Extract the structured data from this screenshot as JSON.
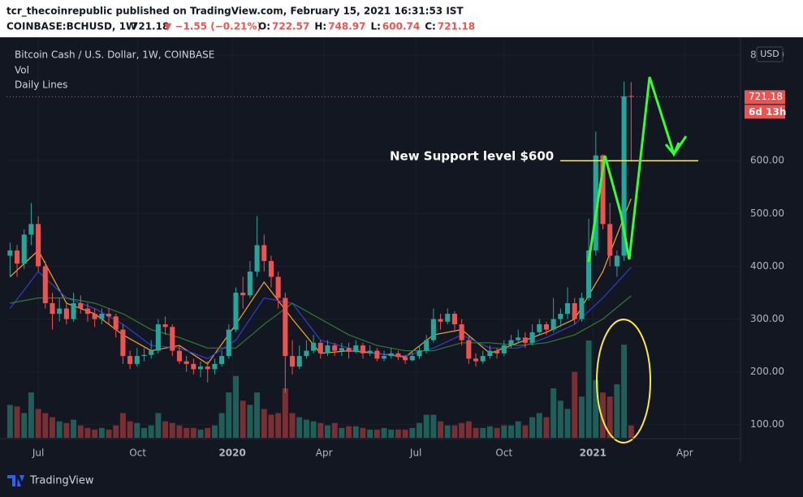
{
  "header": {
    "publisher": "tcr_thecoinrepublic published on TradingView.com, February 15, 2021 16:31:53 IST",
    "symbol": "COINBASE:BCHUSD, 1W",
    "price": "721.18",
    "change": "▼ −1.55 (−0.21%)",
    "ohlc": [
      {
        "label": "O:",
        "value": "722.57"
      },
      {
        "label": "H:",
        "value": "748.97"
      },
      {
        "label": "L:",
        "value": "600.74"
      },
      {
        "label": "C:",
        "value": "721.18"
      }
    ]
  },
  "chart_data": {
    "type": "candlestick",
    "legend": [
      "Bitcoin Cash / U.S. Dollar, 1W, COINBASE",
      "Vol",
      "Daily Lines"
    ],
    "currency": "USD",
    "last_price": 721.18,
    "countdown": "6d 13h",
    "up_color": "#26a69a",
    "down_color": "#ef5350",
    "up_volume_color": "#1f5f5a",
    "down_volume_color": "#7a2f33",
    "annotation": {
      "text": "New Support level $600",
      "level": 600,
      "color": "#ffeb3b"
    },
    "xlim": [
      -0.5,
      103.5
    ],
    "xticks": [
      {
        "value": 4,
        "label": "Jul"
      },
      {
        "value": 18.1,
        "label": "Oct"
      },
      {
        "value": 31.5,
        "label": "2020"
      },
      {
        "value": 44.5,
        "label": "Apr"
      },
      {
        "value": 57.5,
        "label": "Jul"
      },
      {
        "value": 70,
        "label": "Oct"
      },
      {
        "value": 82.6,
        "label": "2021"
      },
      {
        "value": 95.6,
        "label": "Apr"
      }
    ],
    "ylim": [
      75,
      820
    ],
    "yticks": [
      {
        "value": 100,
        "label": "100.00"
      },
      {
        "value": 200,
        "label": "200.00"
      },
      {
        "value": 300,
        "label": "300.00"
      },
      {
        "value": 400,
        "label": "400.00"
      },
      {
        "value": 500,
        "label": "500.00"
      },
      {
        "value": 600,
        "label": "600.00"
      },
      {
        "value": 800,
        "label": "800.00"
      }
    ],
    "candles": [
      {
        "x": 0,
        "open": 420,
        "high": 445,
        "low": 380,
        "close": 430,
        "volume": 40
      },
      {
        "x": 1,
        "open": 430,
        "high": 440,
        "low": 380,
        "close": 405,
        "volume": 38
      },
      {
        "x": 2,
        "open": 405,
        "high": 470,
        "low": 395,
        "close": 460,
        "volume": 30
      },
      {
        "x": 3,
        "open": 460,
        "high": 520,
        "low": 440,
        "close": 480,
        "volume": 55
      },
      {
        "x": 4,
        "open": 480,
        "high": 495,
        "low": 390,
        "close": 400,
        "volume": 35
      },
      {
        "x": 5,
        "open": 400,
        "high": 410,
        "low": 320,
        "close": 330,
        "volume": 30
      },
      {
        "x": 6,
        "open": 330,
        "high": 350,
        "low": 280,
        "close": 310,
        "volume": 25
      },
      {
        "x": 7,
        "open": 310,
        "high": 340,
        "low": 295,
        "close": 320,
        "volume": 20
      },
      {
        "x": 8,
        "open": 320,
        "high": 330,
        "low": 290,
        "close": 300,
        "volume": 18
      },
      {
        "x": 9,
        "open": 300,
        "high": 350,
        "low": 295,
        "close": 330,
        "volume": 22
      },
      {
        "x": 10,
        "open": 330,
        "high": 345,
        "low": 310,
        "close": 320,
        "volume": 15
      },
      {
        "x": 11,
        "open": 320,
        "high": 330,
        "low": 295,
        "close": 310,
        "volume": 12
      },
      {
        "x": 12,
        "open": 310,
        "high": 320,
        "low": 285,
        "close": 300,
        "volume": 10
      },
      {
        "x": 13,
        "open": 300,
        "high": 320,
        "low": 290,
        "close": 310,
        "volume": 12
      },
      {
        "x": 14,
        "open": 310,
        "high": 320,
        "low": 290,
        "close": 305,
        "volume": 10
      },
      {
        "x": 15,
        "open": 305,
        "high": 310,
        "low": 265,
        "close": 280,
        "volume": 15
      },
      {
        "x": 16,
        "open": 280,
        "high": 290,
        "low": 215,
        "close": 230,
        "volume": 30
      },
      {
        "x": 17,
        "open": 230,
        "high": 240,
        "low": 205,
        "close": 215,
        "volume": 20
      },
      {
        "x": 18,
        "open": 215,
        "high": 245,
        "low": 210,
        "close": 230,
        "volume": 18
      },
      {
        "x": 19,
        "open": 230,
        "high": 245,
        "low": 220,
        "close": 232,
        "volume": 12
      },
      {
        "x": 20,
        "open": 232,
        "high": 260,
        "low": 225,
        "close": 240,
        "volume": 15
      },
      {
        "x": 21,
        "open": 240,
        "high": 300,
        "low": 235,
        "close": 290,
        "volume": 30
      },
      {
        "x": 22,
        "open": 290,
        "high": 305,
        "low": 270,
        "close": 285,
        "volume": 20
      },
      {
        "x": 23,
        "open": 285,
        "high": 290,
        "low": 230,
        "close": 240,
        "volume": 18
      },
      {
        "x": 24,
        "open": 240,
        "high": 250,
        "low": 215,
        "close": 220,
        "volume": 15
      },
      {
        "x": 25,
        "open": 220,
        "high": 230,
        "low": 200,
        "close": 215,
        "volume": 12
      },
      {
        "x": 26,
        "open": 215,
        "high": 225,
        "low": 195,
        "close": 205,
        "volume": 12
      },
      {
        "x": 27,
        "open": 205,
        "high": 220,
        "low": 190,
        "close": 210,
        "volume": 10
      },
      {
        "x": 28,
        "open": 210,
        "high": 220,
        "low": 180,
        "close": 205,
        "volume": 12
      },
      {
        "x": 29,
        "open": 205,
        "high": 225,
        "low": 195,
        "close": 215,
        "volume": 15
      },
      {
        "x": 30,
        "open": 215,
        "high": 240,
        "low": 210,
        "close": 230,
        "volume": 30
      },
      {
        "x": 31,
        "open": 230,
        "high": 290,
        "low": 225,
        "close": 280,
        "volume": 55
      },
      {
        "x": 32,
        "open": 280,
        "high": 360,
        "low": 275,
        "close": 350,
        "volume": 75
      },
      {
        "x": 33,
        "open": 350,
        "high": 380,
        "low": 320,
        "close": 345,
        "volume": 45
      },
      {
        "x": 34,
        "open": 345,
        "high": 410,
        "low": 340,
        "close": 390,
        "volume": 40
      },
      {
        "x": 35,
        "open": 390,
        "high": 495,
        "low": 380,
        "close": 440,
        "volume": 55
      },
      {
        "x": 36,
        "open": 440,
        "high": 460,
        "low": 390,
        "close": 410,
        "volume": 35
      },
      {
        "x": 37,
        "open": 410,
        "high": 420,
        "low": 360,
        "close": 380,
        "volume": 28
      },
      {
        "x": 38,
        "open": 380,
        "high": 390,
        "low": 320,
        "close": 340,
        "volume": 30
      },
      {
        "x": 39,
        "open": 340,
        "high": 350,
        "low": 160,
        "close": 230,
        "volume": 60
      },
      {
        "x": 40,
        "open": 230,
        "high": 260,
        "low": 195,
        "close": 210,
        "volume": 30
      },
      {
        "x": 41,
        "open": 210,
        "high": 250,
        "low": 205,
        "close": 230,
        "volume": 25
      },
      {
        "x": 42,
        "open": 230,
        "high": 260,
        "low": 225,
        "close": 240,
        "volume": 22
      },
      {
        "x": 43,
        "open": 240,
        "high": 270,
        "low": 235,
        "close": 255,
        "volume": 20
      },
      {
        "x": 44,
        "open": 255,
        "high": 260,
        "low": 225,
        "close": 235,
        "volume": 18
      },
      {
        "x": 45,
        "open": 235,
        "high": 260,
        "low": 230,
        "close": 250,
        "volume": 15
      },
      {
        "x": 46,
        "open": 250,
        "high": 255,
        "low": 230,
        "close": 240,
        "volume": 18
      },
      {
        "x": 47,
        "open": 240,
        "high": 255,
        "low": 230,
        "close": 245,
        "volume": 12
      },
      {
        "x": 48,
        "open": 245,
        "high": 255,
        "low": 225,
        "close": 238,
        "volume": 14
      },
      {
        "x": 49,
        "open": 238,
        "high": 260,
        "low": 235,
        "close": 250,
        "volume": 14
      },
      {
        "x": 50,
        "open": 250,
        "high": 255,
        "low": 225,
        "close": 235,
        "volume": 12
      },
      {
        "x": 51,
        "open": 235,
        "high": 250,
        "low": 230,
        "close": 240,
        "volume": 10
      },
      {
        "x": 52,
        "open": 240,
        "high": 245,
        "low": 220,
        "close": 225,
        "volume": 10
      },
      {
        "x": 53,
        "open": 225,
        "high": 240,
        "low": 220,
        "close": 230,
        "volume": 12
      },
      {
        "x": 54,
        "open": 230,
        "high": 245,
        "low": 225,
        "close": 235,
        "volume": 10
      },
      {
        "x": 55,
        "open": 235,
        "high": 240,
        "low": 222,
        "close": 228,
        "volume": 10
      },
      {
        "x": 56,
        "open": 228,
        "high": 232,
        "low": 215,
        "close": 222,
        "volume": 10
      },
      {
        "x": 57,
        "open": 222,
        "high": 240,
        "low": 220,
        "close": 230,
        "volume": 12
      },
      {
        "x": 58,
        "open": 230,
        "high": 250,
        "low": 225,
        "close": 240,
        "volume": 18
      },
      {
        "x": 59,
        "open": 240,
        "high": 270,
        "low": 235,
        "close": 260,
        "volume": 28
      },
      {
        "x": 60,
        "open": 260,
        "high": 320,
        "low": 255,
        "close": 300,
        "volume": 28
      },
      {
        "x": 61,
        "open": 300,
        "high": 310,
        "low": 280,
        "close": 295,
        "volume": 20
      },
      {
        "x": 62,
        "open": 295,
        "high": 320,
        "low": 290,
        "close": 310,
        "volume": 15
      },
      {
        "x": 63,
        "open": 310,
        "high": 315,
        "low": 280,
        "close": 290,
        "volume": 15
      },
      {
        "x": 64,
        "open": 290,
        "high": 300,
        "low": 250,
        "close": 260,
        "volume": 18
      },
      {
        "x": 65,
        "open": 260,
        "high": 270,
        "low": 215,
        "close": 225,
        "volume": 20
      },
      {
        "x": 66,
        "open": 225,
        "high": 235,
        "low": 210,
        "close": 220,
        "volume": 12
      },
      {
        "x": 67,
        "open": 220,
        "high": 240,
        "low": 215,
        "close": 230,
        "volume": 12
      },
      {
        "x": 68,
        "open": 230,
        "high": 250,
        "low": 225,
        "close": 240,
        "volume": 14
      },
      {
        "x": 69,
        "open": 240,
        "high": 245,
        "low": 225,
        "close": 235,
        "volume": 12
      },
      {
        "x": 70,
        "open": 235,
        "high": 260,
        "low": 230,
        "close": 250,
        "volume": 15
      },
      {
        "x": 71,
        "open": 250,
        "high": 270,
        "low": 245,
        "close": 260,
        "volume": 15
      },
      {
        "x": 72,
        "open": 260,
        "high": 280,
        "low": 255,
        "close": 265,
        "volume": 20
      },
      {
        "x": 73,
        "open": 265,
        "high": 275,
        "low": 245,
        "close": 255,
        "volume": 15
      },
      {
        "x": 74,
        "open": 255,
        "high": 290,
        "low": 250,
        "close": 275,
        "volume": 25
      },
      {
        "x": 75,
        "open": 275,
        "high": 300,
        "low": 270,
        "close": 290,
        "volume": 30
      },
      {
        "x": 76,
        "open": 290,
        "high": 295,
        "low": 270,
        "close": 280,
        "volume": 25
      },
      {
        "x": 77,
        "open": 280,
        "high": 340,
        "low": 275,
        "close": 300,
        "volume": 60
      },
      {
        "x": 78,
        "open": 300,
        "high": 320,
        "low": 285,
        "close": 310,
        "volume": 45
      },
      {
        "x": 79,
        "open": 310,
        "high": 360,
        "low": 300,
        "close": 330,
        "volume": 35
      },
      {
        "x": 80,
        "open": 330,
        "high": 340,
        "low": 290,
        "close": 300,
        "volume": 80
      },
      {
        "x": 81,
        "open": 300,
        "high": 350,
        "low": 295,
        "close": 340,
        "volume": 50
      },
      {
        "x": 82,
        "open": 340,
        "high": 490,
        "low": 335,
        "close": 430,
        "volume": 118
      },
      {
        "x": 83,
        "open": 430,
        "high": 655,
        "low": 420,
        "close": 610,
        "volume": 70
      },
      {
        "x": 84,
        "open": 610,
        "high": 612,
        "low": 470,
        "close": 480,
        "volume": 55
      },
      {
        "x": 85,
        "open": 480,
        "high": 520,
        "low": 400,
        "close": 420,
        "volume": 50
      },
      {
        "x": 86,
        "open": 400,
        "high": 430,
        "low": 380,
        "close": 420,
        "volume": 65
      },
      {
        "x": 87,
        "open": 420,
        "high": 750,
        "low": 410,
        "close": 722,
        "volume": 113
      },
      {
        "x": 88,
        "open": 722.57,
        "high": 748.97,
        "low": 600.74,
        "close": 721.18,
        "volume": 15
      }
    ],
    "lines": [
      {
        "color": "#f5a623",
        "x": [
          0,
          4,
          8,
          12,
          16,
          20,
          24,
          28,
          32,
          36,
          40,
          44,
          48,
          52,
          56,
          60,
          64,
          68,
          72,
          76,
          80,
          84,
          88
        ],
        "values": [
          380,
          430,
          330,
          310,
          270,
          240,
          250,
          215,
          290,
          370,
          300,
          235,
          240,
          235,
          228,
          270,
          280,
          235,
          255,
          275,
          300,
          390,
          528
        ]
      },
      {
        "color": "#2f3fd0",
        "x": [
          0,
          4,
          8,
          12,
          16,
          20,
          24,
          28,
          32,
          36,
          40,
          44,
          48,
          52,
          56,
          60,
          64,
          68,
          72,
          76,
          80,
          84,
          88
        ],
        "values": [
          320,
          390,
          340,
          320,
          290,
          250,
          245,
          225,
          260,
          340,
          330,
          260,
          245,
          235,
          230,
          245,
          270,
          245,
          245,
          265,
          290,
          340,
          398
        ]
      },
      {
        "color": "#2e7d32",
        "x": [
          0,
          4,
          8,
          12,
          16,
          20,
          24,
          28,
          32,
          36,
          40,
          44,
          48,
          52,
          56,
          60,
          64,
          68,
          72,
          76,
          80,
          84,
          88
        ],
        "values": [
          330,
          340,
          340,
          330,
          310,
          280,
          265,
          245,
          245,
          290,
          330,
          300,
          270,
          250,
          240,
          240,
          255,
          255,
          250,
          255,
          270,
          300,
          344
        ]
      }
    ]
  },
  "footer": {
    "brand": "TradingView"
  }
}
